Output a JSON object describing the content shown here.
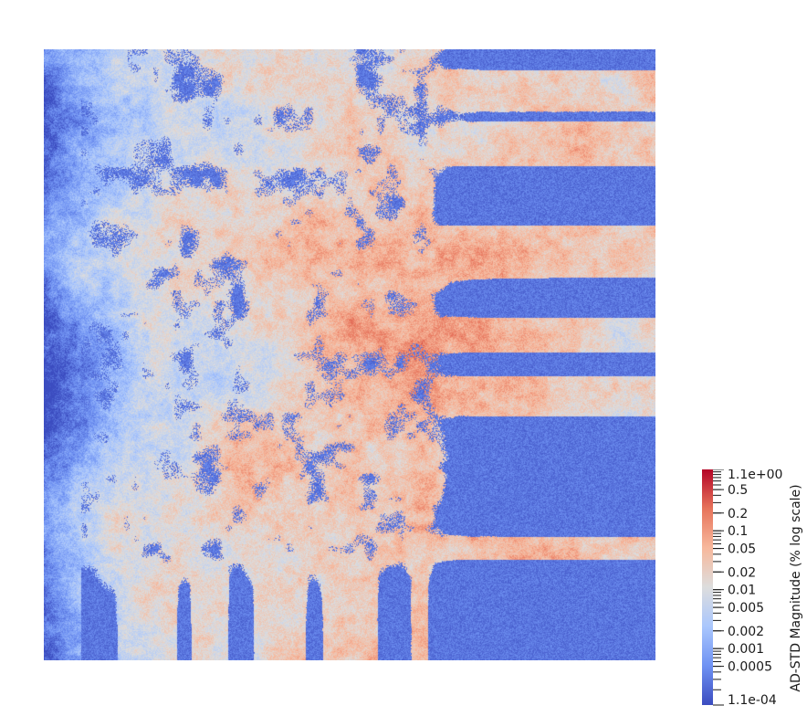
{
  "viewport": {
    "description_icon": "field-render",
    "colormap": [
      "#3b4cc0",
      "#6f92f3",
      "#aac7fd",
      "#dddddd",
      "#f7b89c",
      "#e7745b",
      "#b40426"
    ]
  },
  "colorbar": {
    "title": "AD-STD Magnitude (% log scale)",
    "scale": "log",
    "min": 0.00011,
    "max": 1.1,
    "labels": [
      {
        "text": "1.1e+00",
        "value": 1.1
      },
      {
        "text": "0.5",
        "value": 0.5
      },
      {
        "text": "0.2",
        "value": 0.2
      },
      {
        "text": "0.1",
        "value": 0.1
      },
      {
        "text": "0.05",
        "value": 0.05
      },
      {
        "text": "0.02",
        "value": 0.02
      },
      {
        "text": "0.01",
        "value": 0.01
      },
      {
        "text": "0.005",
        "value": 0.005
      },
      {
        "text": "0.002",
        "value": 0.002
      },
      {
        "text": "0.001",
        "value": 0.001
      },
      {
        "text": "0.0005",
        "value": 0.0005
      },
      {
        "text": "1.1e-04",
        "value": 0.00011
      }
    ]
  }
}
